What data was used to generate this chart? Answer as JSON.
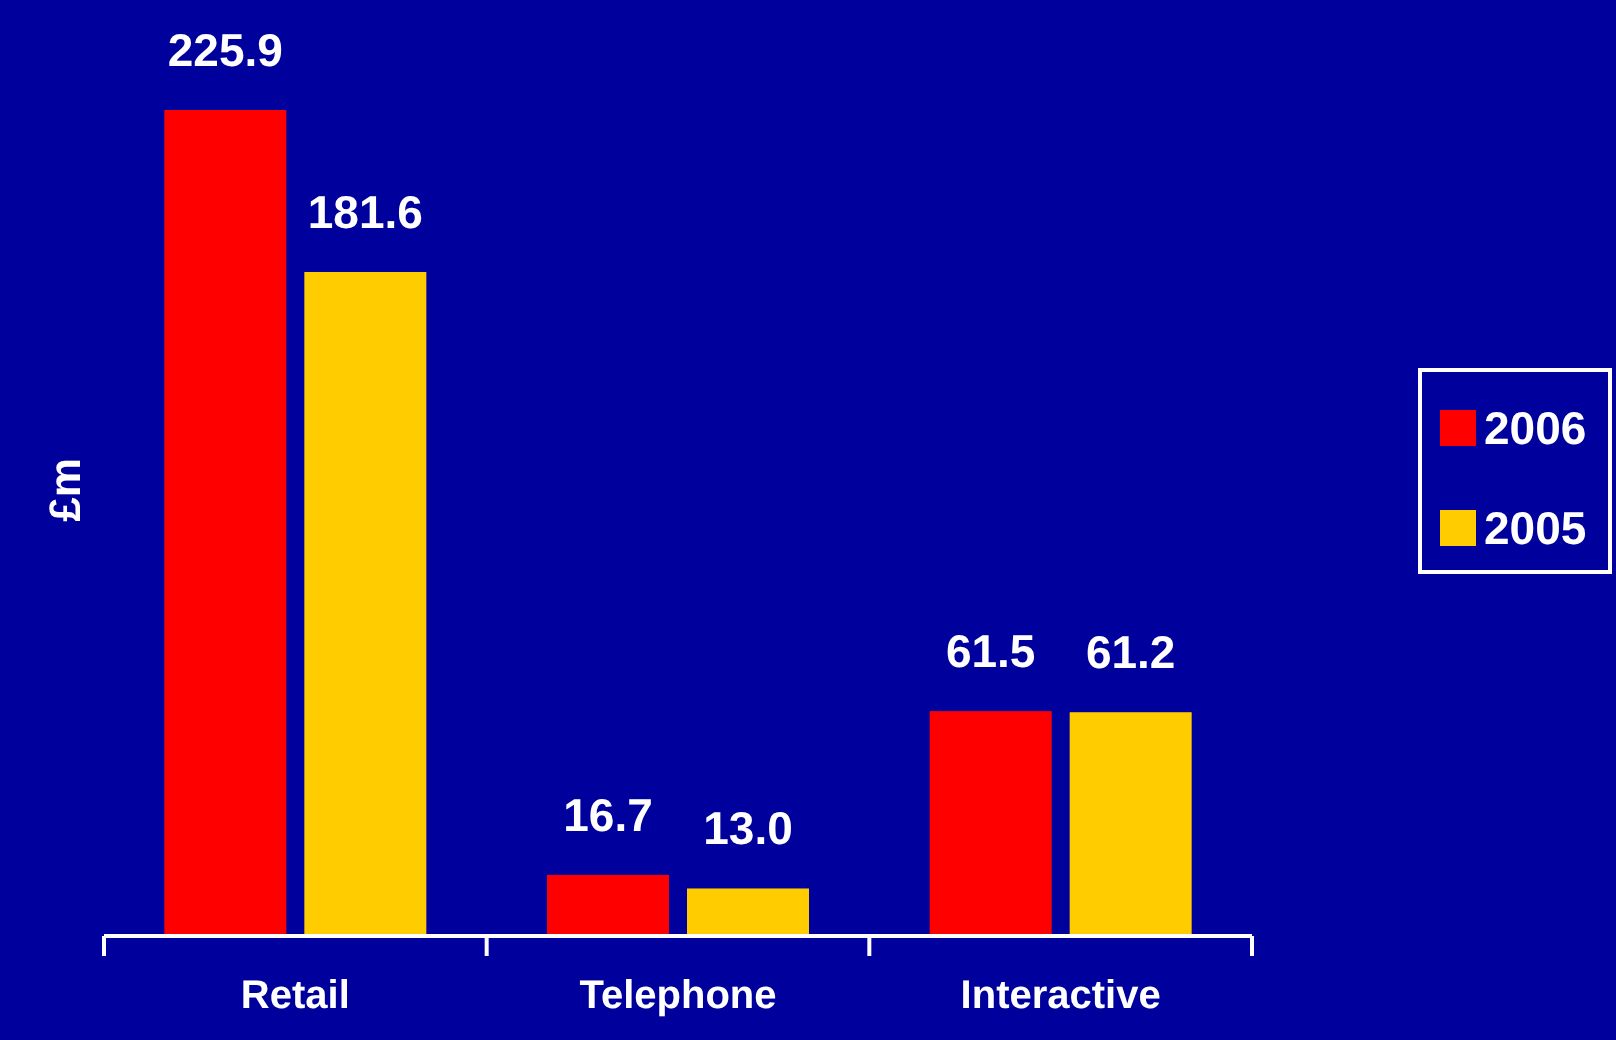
{
  "chart_data": {
    "type": "bar",
    "ylabel": "£m",
    "categories": [
      "Retail",
      "Telephone",
      "Interactive"
    ],
    "legend": "right",
    "series": [
      {
        "name": "2006",
        "color": "#ff0000",
        "values": [
          225.9,
          16.7,
          61.5
        ],
        "value_labels": [
          "225.9",
          "16.7",
          "61.5"
        ]
      },
      {
        "name": "2005",
        "color": "#ffcc00",
        "values": [
          181.6,
          13.0,
          61.2
        ],
        "value_labels": [
          "181.6",
          "13.0",
          "61.2"
        ]
      }
    ]
  }
}
